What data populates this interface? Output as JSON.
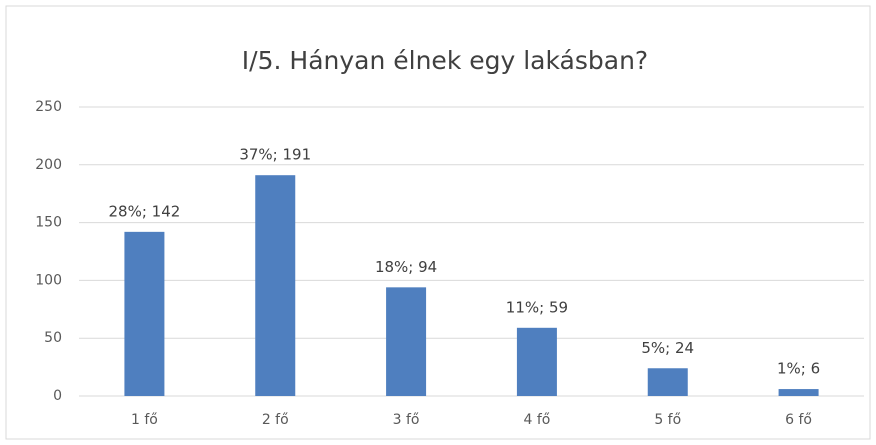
{
  "chart_data": {
    "type": "bar",
    "title": "I/5. Hányan élnek egy lakásban?",
    "categories": [
      "1 fő",
      "2 fő",
      "3 fő",
      "4 fő",
      "5 fő",
      "6 fő"
    ],
    "values": [
      142,
      191,
      94,
      59,
      24,
      6
    ],
    "value_labels": [
      "28%; 142",
      "37%; 191",
      "18%; 94",
      "11%; 59",
      "5%; 24",
      "1%; 6"
    ],
    "color": "#4f7fbf",
    "ylim": [
      0,
      250
    ],
    "yticks": [
      0,
      50,
      100,
      150,
      200,
      250
    ],
    "grid": true
  }
}
